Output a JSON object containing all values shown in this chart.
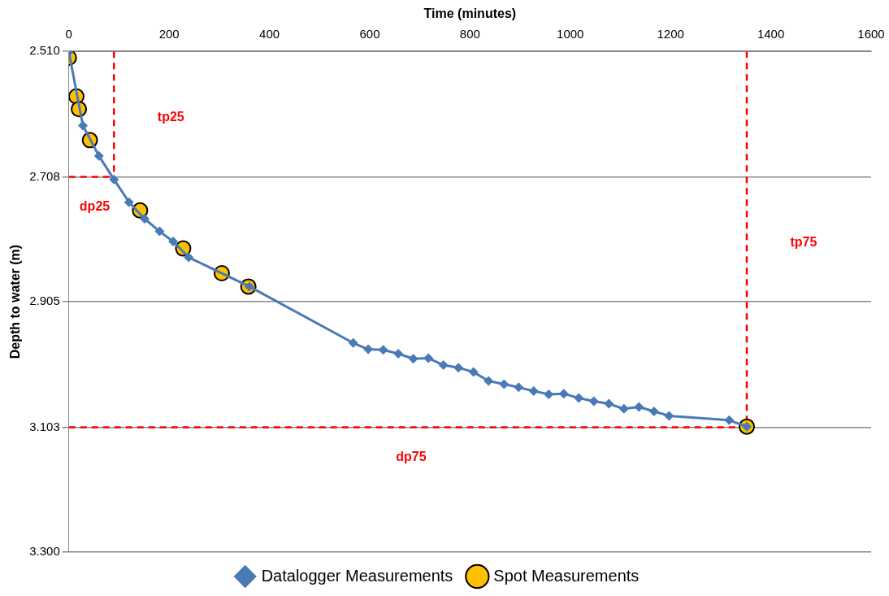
{
  "chart_data": {
    "type": "line",
    "xlabel": "Time (minutes)",
    "ylabel": "Depth to water (m)",
    "xlim": [
      0,
      1600
    ],
    "xticks": [
      0,
      200,
      400,
      600,
      800,
      1000,
      1200,
      1400,
      1600
    ],
    "ylim": [
      3.3,
      2.51
    ],
    "yticks": [
      {
        "value": 2.51,
        "label": "2.510"
      },
      {
        "value": 2.708,
        "label": "2.708"
      },
      {
        "value": 2.905,
        "label": "2.905"
      },
      {
        "value": 3.103,
        "label": "3.103"
      },
      {
        "value": 3.3,
        "label": "3.300"
      }
    ],
    "grid": "y",
    "legend": "bottom",
    "series": [
      {
        "name": "Datalogger Measurements",
        "type": "line",
        "color": "#4a7ab5",
        "marker": "diamond",
        "x": [
          0,
          28,
          60,
          90,
          120,
          151,
          181,
          208,
          239,
          360,
          567,
          597,
          627,
          657,
          687,
          717,
          747,
          777,
          807,
          837,
          868,
          897,
          927,
          957,
          987,
          1017,
          1047,
          1077,
          1107,
          1137,
          1167,
          1197,
          1317,
          1352
        ],
        "values": [
          2.511,
          2.627,
          2.675,
          2.712,
          2.748,
          2.774,
          2.794,
          2.81,
          2.835,
          2.881,
          2.97,
          2.98,
          2.981,
          2.987,
          2.995,
          2.994,
          3.005,
          3.009,
          3.016,
          3.03,
          3.035,
          3.04,
          3.046,
          3.051,
          3.05,
          3.057,
          3.062,
          3.066,
          3.074,
          3.071,
          3.078,
          3.085,
          3.092,
          3.102
        ]
      },
      {
        "name": "Spot Measurements",
        "type": "scatter",
        "color": "#ffc000",
        "marker": "circle",
        "x": [
          0,
          15,
          20,
          42,
          142,
          228,
          305,
          358,
          1352
        ],
        "values": [
          2.52,
          2.581,
          2.601,
          2.65,
          2.761,
          2.821,
          2.86,
          2.881,
          3.102
        ]
      },
      {
        "type": "line",
        "color": "#ff0000",
        "marker": "none",
        "line_style": "dashed",
        "x": [
          90,
          90
        ],
        "values": [
          2.51,
          2.708
        ]
      },
      {
        "type": "line",
        "color": "#ff0000",
        "marker": "none",
        "line_style": "dashed",
        "x": [
          0,
          90
        ],
        "values": [
          2.708,
          2.708
        ]
      },
      {
        "type": "line",
        "color": "#ff0000",
        "marker": "none",
        "line_style": "dashed",
        "x": [
          1352,
          1352
        ],
        "values": [
          2.51,
          3.103
        ]
      },
      {
        "type": "line",
        "color": "#ff0000",
        "marker": "none",
        "line_style": "dashed",
        "x": [
          0,
          1352
        ],
        "values": [
          3.103,
          3.103
        ]
      }
    ],
    "annotations": [
      "tp25",
      "dp25",
      "tp75",
      "dp75"
    ]
  }
}
